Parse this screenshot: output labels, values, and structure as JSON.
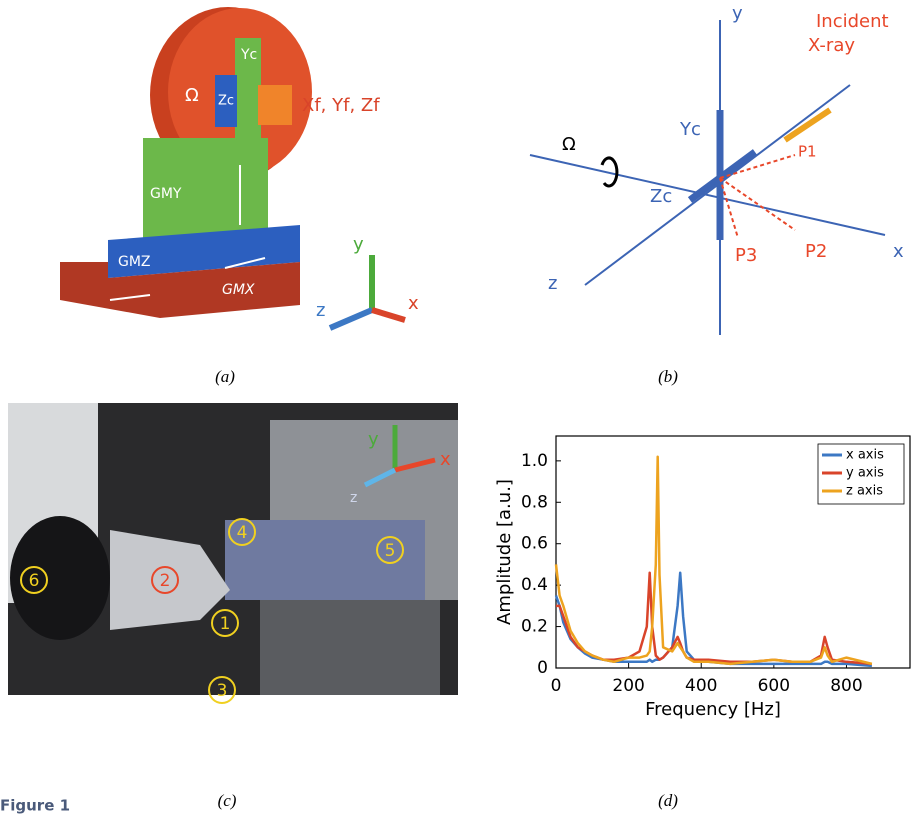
{
  "figure_label": "Figure 1",
  "panel_a": {
    "caption": "(a)",
    "labels": [
      "Ω",
      "Yc",
      "Zc",
      "Xf, Yf, Zf",
      "GMY",
      "GMZ",
      "GMX",
      "y",
      "z",
      "x"
    ]
  },
  "panel_b": {
    "caption": "(b)",
    "labels": [
      "y",
      "Incident",
      "X-ray",
      "Ω",
      "Yc",
      "P1",
      "Zc",
      "P2",
      "P3",
      "z",
      "x"
    ]
  },
  "panel_c": {
    "caption": "(c)",
    "axis_labels": [
      "y",
      "x",
      "z"
    ],
    "markers": [
      "6",
      "2",
      "4",
      "5",
      "1",
      "3"
    ]
  },
  "chart_data": {
    "type": "line",
    "caption": "(d)",
    "xlabel": "Frequency [Hz]",
    "ylabel": "Amplitude [a.u.]",
    "x": [
      0,
      10,
      20,
      40,
      60,
      80,
      100,
      130,
      160,
      200,
      230,
      250,
      258,
      265,
      275,
      280,
      285,
      295,
      320,
      335,
      342,
      350,
      360,
      380,
      420,
      480,
      540,
      600,
      650,
      700,
      730,
      740,
      748,
      760,
      800,
      870
    ],
    "series": [
      {
        "name": "x axis",
        "color": "#3c78c4",
        "values": [
          0.35,
          0.3,
          0.22,
          0.14,
          0.1,
          0.07,
          0.05,
          0.04,
          0.03,
          0.03,
          0.03,
          0.03,
          0.04,
          0.03,
          0.04,
          0.04,
          0.04,
          0.05,
          0.1,
          0.3,
          0.46,
          0.25,
          0.08,
          0.04,
          0.03,
          0.02,
          0.02,
          0.02,
          0.02,
          0.02,
          0.02,
          0.03,
          0.03,
          0.02,
          0.02,
          0.01
        ]
      },
      {
        "name": "y axis",
        "color": "#d9442a",
        "values": [
          0.3,
          0.3,
          0.25,
          0.15,
          0.1,
          0.08,
          0.06,
          0.04,
          0.04,
          0.05,
          0.08,
          0.2,
          0.46,
          0.2,
          0.06,
          0.05,
          0.04,
          0.05,
          0.1,
          0.15,
          0.12,
          0.08,
          0.05,
          0.04,
          0.04,
          0.03,
          0.03,
          0.04,
          0.03,
          0.03,
          0.06,
          0.15,
          0.1,
          0.04,
          0.03,
          0.02
        ]
      },
      {
        "name": "z axis",
        "color": "#eda31f",
        "values": [
          0.5,
          0.35,
          0.3,
          0.18,
          0.12,
          0.08,
          0.06,
          0.04,
          0.03,
          0.05,
          0.05,
          0.06,
          0.08,
          0.2,
          0.5,
          1.02,
          0.45,
          0.1,
          0.08,
          0.12,
          0.1,
          0.08,
          0.05,
          0.03,
          0.03,
          0.02,
          0.03,
          0.04,
          0.03,
          0.03,
          0.05,
          0.1,
          0.06,
          0.03,
          0.05,
          0.02
        ]
      }
    ],
    "xlim": [
      0,
      975
    ],
    "xticks": [
      0,
      200,
      400,
      600,
      800
    ],
    "ylim": [
      0,
      1.12
    ],
    "yticks": [
      0,
      0.2,
      0.4,
      0.6,
      0.8,
      {
        "value": 1,
        "label": "1.0"
      }
    ],
    "legend": "upper right"
  }
}
